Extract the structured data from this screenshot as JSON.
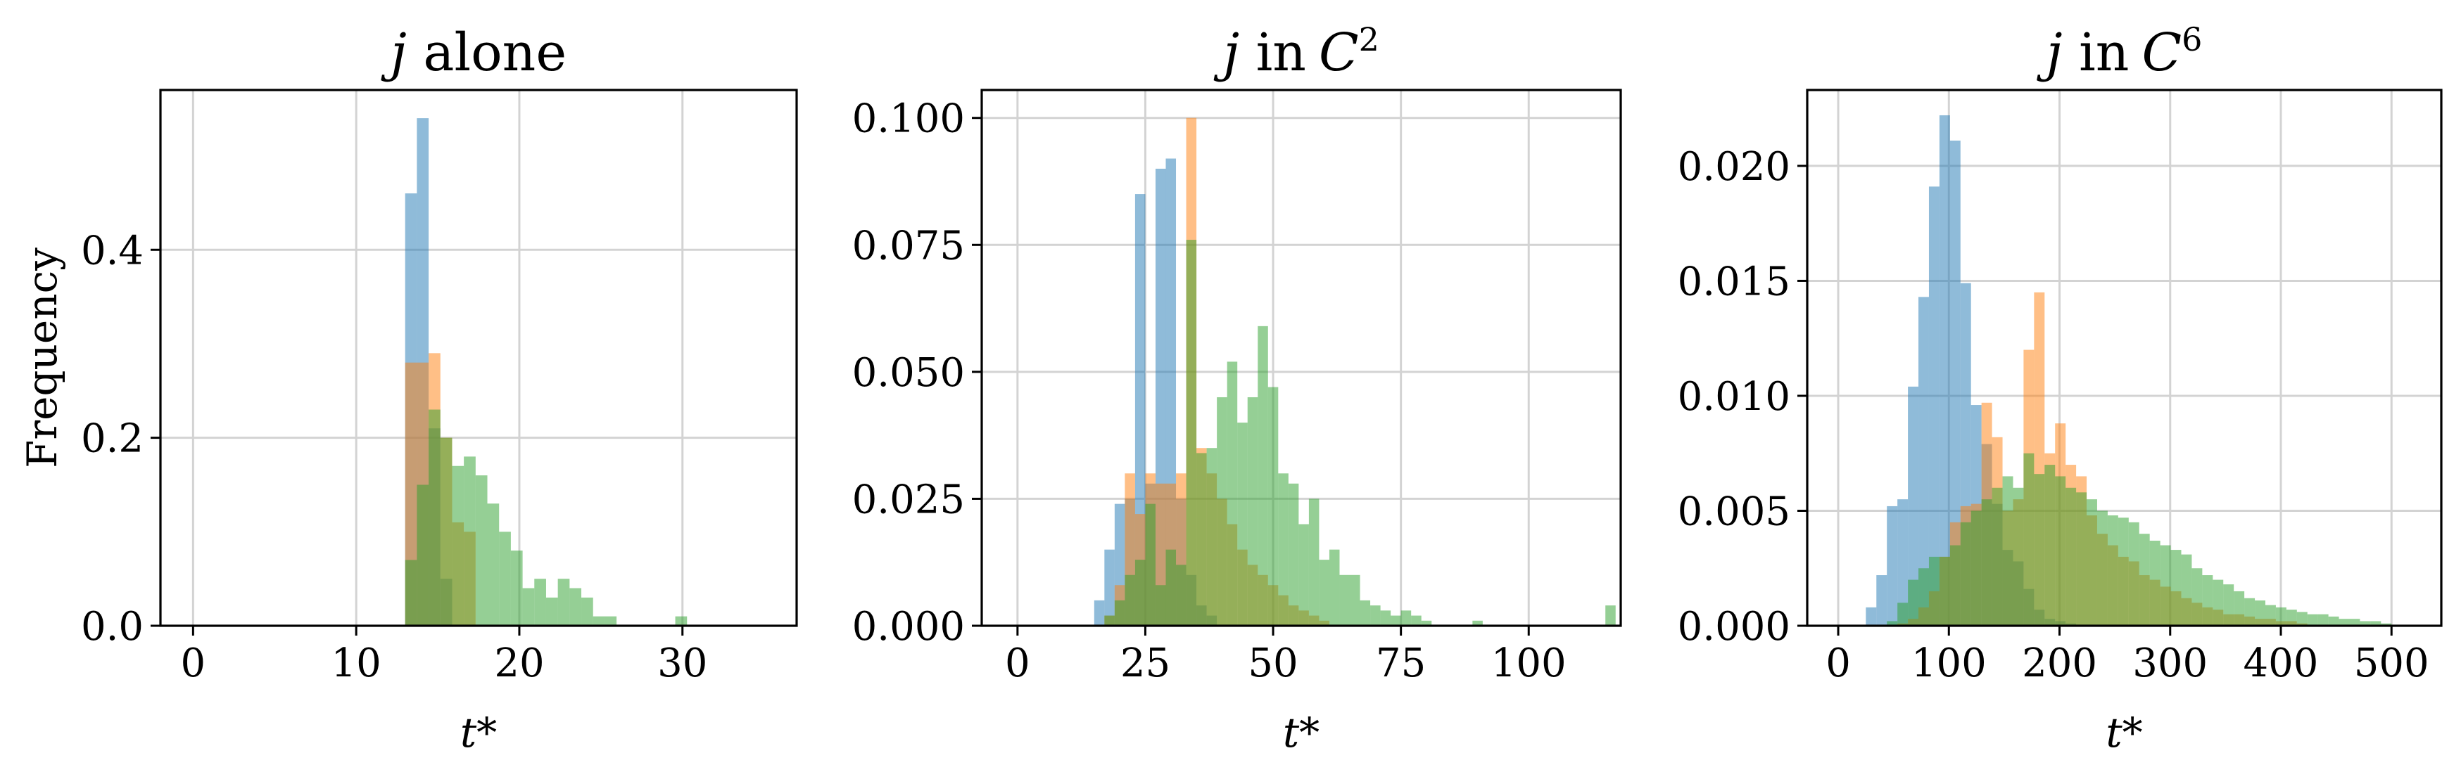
{
  "colors": {
    "blue": "#1f77b4",
    "orange": "#ff7f0e",
    "green": "#2ca02c",
    "opacity": 0.5
  },
  "chart_data": [
    {
      "type": "histogram",
      "title_math": "j",
      "title_text": "alone",
      "title_sup": "",
      "xlabel": "t*",
      "ylabel": "Frequency",
      "xlim": [
        -2,
        37
      ],
      "ylim": [
        0,
        0.57
      ],
      "xticks": [
        0,
        10,
        20,
        30
      ],
      "yticks": [
        0.0,
        0.2,
        0.4
      ],
      "xtick_labels": [
        "0",
        "10",
        "20",
        "30"
      ],
      "ytick_labels": [
        "0.0",
        "0.2",
        "0.4"
      ],
      "grid": true,
      "series": [
        {
          "color": "#1f77b4",
          "bin_start": 13,
          "bin_width": 0.72,
          "values": [
            0.46,
            0.54,
            0.21,
            0.05
          ]
        },
        {
          "color": "#ff7f0e",
          "bin_start": 13,
          "bin_width": 0.72,
          "values": [
            0.28,
            0.28,
            0.29,
            0.2,
            0.11,
            0.1
          ]
        },
        {
          "color": "#2ca02c",
          "bin_start": 13,
          "bin_width": 0.72,
          "values": [
            0.07,
            0.15,
            0.23,
            0.2,
            0.17,
            0.18,
            0.16,
            0.13,
            0.1,
            0.08,
            0.04,
            0.05,
            0.03,
            0.05,
            0.04,
            0.03,
            0.01,
            0.01,
            0.0,
            0.0,
            0.0,
            0.0,
            0.0,
            0.01
          ]
        }
      ]
    },
    {
      "type": "histogram",
      "title_math": "j",
      "title_text": "in",
      "title_sup": "2",
      "xlabel": "t*",
      "ylabel": "",
      "xlim": [
        -7,
        118
      ],
      "ylim": [
        0,
        0.1055
      ],
      "xticks": [
        0,
        25,
        50,
        75,
        100
      ],
      "yticks": [
        0.0,
        0.025,
        0.05,
        0.075,
        0.1
      ],
      "xtick_labels": [
        "0",
        "25",
        "50",
        "75",
        "100"
      ],
      "ytick_labels": [
        "0.000",
        "0.025",
        "0.050",
        "0.075",
        "0.100"
      ],
      "grid": true,
      "series": [
        {
          "color": "#1f77b4",
          "bin_start": 15,
          "bin_width": 2,
          "values": [
            0.005,
            0.015,
            0.024,
            0.025,
            0.085,
            0.028,
            0.09,
            0.092,
            0.025,
            0.01,
            0.004,
            0.002
          ]
        },
        {
          "color": "#ff7f0e",
          "bin_start": 15,
          "bin_width": 2,
          "values": [
            0.0,
            0.002,
            0.008,
            0.03,
            0.022,
            0.03,
            0.028,
            0.028,
            0.03,
            0.1,
            0.035,
            0.03,
            0.025,
            0.02,
            0.015,
            0.012,
            0.01,
            0.008,
            0.006,
            0.004,
            0.003,
            0.002,
            0.001
          ]
        },
        {
          "color": "#2ca02c",
          "bin_start": 15,
          "bin_width": 2,
          "values": [
            0.0,
            0.002,
            0.005,
            0.01,
            0.013,
            0.024,
            0.008,
            0.015,
            0.012,
            0.076,
            0.034,
            0.035,
            0.045,
            0.052,
            0.04,
            0.045,
            0.059,
            0.047,
            0.03,
            0.028,
            0.02,
            0.025,
            0.013,
            0.015,
            0.01,
            0.01,
            0.005,
            0.004,
            0.003,
            0.002,
            0.003,
            0.002,
            0.001,
            0.0,
            0.0,
            0.0,
            0.0,
            0.001,
            0.0,
            0.0,
            0.0,
            0.0,
            0.0,
            0.0,
            0.0,
            0.0,
            0.0,
            0.0,
            0.0,
            0.0,
            0.004
          ]
        }
      ]
    },
    {
      "type": "histogram",
      "title_math": "j",
      "title_text": "in",
      "title_sup": "6",
      "xlabel": "t*",
      "ylabel": "",
      "xlim": [
        -28,
        545
      ],
      "ylim": [
        0,
        0.0233
      ],
      "xticks": [
        0,
        100,
        200,
        300,
        400,
        500
      ],
      "yticks": [
        0.0,
        0.005,
        0.01,
        0.015,
        0.02
      ],
      "xtick_labels": [
        "0",
        "100",
        "200",
        "300",
        "400",
        "500"
      ],
      "ytick_labels": [
        "0.000",
        "0.005",
        "0.010",
        "0.015",
        "0.020"
      ],
      "grid": true,
      "series": [
        {
          "color": "#1f77b4",
          "bin_start": 25,
          "bin_width": 9.5,
          "values": [
            0.0008,
            0.0022,
            0.0052,
            0.0055,
            0.0104,
            0.0143,
            0.0191,
            0.0222,
            0.0211,
            0.0149,
            0.0096,
            0.0079,
            0.0053,
            0.0033,
            0.0028,
            0.0016,
            0.0007,
            0.0003,
            0.0002,
            0.0001
          ]
        },
        {
          "color": "#ff7f0e",
          "bin_start": 25,
          "bin_width": 9.5,
          "values": [
            0.0,
            0.0,
            0.0,
            0.0001,
            0.0003,
            0.0008,
            0.0015,
            0.003,
            0.0045,
            0.0052,
            0.0053,
            0.0097,
            0.0082,
            0.005,
            0.0055,
            0.012,
            0.0145,
            0.0075,
            0.0088,
            0.007,
            0.0065,
            0.0048,
            0.004,
            0.0035,
            0.003,
            0.0028,
            0.0022,
            0.002,
            0.0017,
            0.0015,
            0.0012,
            0.001,
            0.0008,
            0.0007,
            0.0005,
            0.0005,
            0.0004,
            0.0003,
            0.0003,
            0.0002,
            0.0002,
            0.0001
          ]
        },
        {
          "color": "#2ca02c",
          "bin_start": 25,
          "bin_width": 9.5,
          "values": [
            0.0,
            0.0,
            0.0002,
            0.001,
            0.002,
            0.0025,
            0.003,
            0.003,
            0.0035,
            0.0045,
            0.005,
            0.0055,
            0.006,
            0.0065,
            0.006,
            0.0075,
            0.0066,
            0.007,
            0.0065,
            0.006,
            0.0058,
            0.0055,
            0.005,
            0.0048,
            0.0047,
            0.0045,
            0.004,
            0.0037,
            0.0035,
            0.0033,
            0.0031,
            0.0025,
            0.0022,
            0.002,
            0.0018,
            0.0015,
            0.0012,
            0.0011,
            0.0009,
            0.0008,
            0.0007,
            0.0006,
            0.0005,
            0.0005,
            0.0004,
            0.0003,
            0.0003,
            0.0002,
            0.0002,
            0.0001
          ]
        }
      ]
    }
  ]
}
